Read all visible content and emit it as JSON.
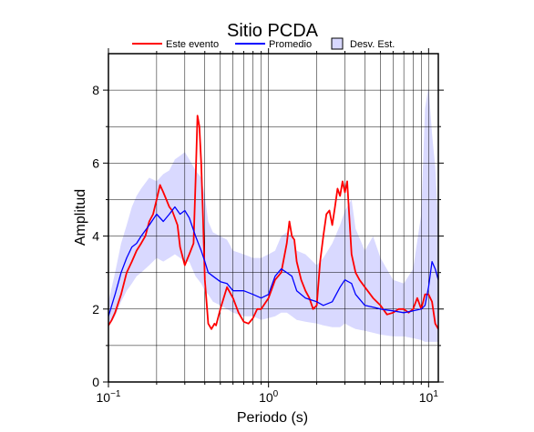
{
  "chart_data": {
    "type": "area",
    "title": "Sitio PCDA",
    "xlabel": "Periodo (s)",
    "ylabel": "Amplitud",
    "xscale": "log",
    "xlim": [
      0.1,
      11.5
    ],
    "ylim": [
      0,
      9
    ],
    "x_tick_labels": [
      {
        "value": 0.1,
        "base": "10",
        "exp": "−1"
      },
      {
        "value": 1,
        "base": "10",
        "exp": "0"
      },
      {
        "value": 10,
        "base": "10",
        "exp": "1"
      }
    ],
    "y_tick_labels": [
      "0",
      "2",
      "4",
      "6",
      "8"
    ],
    "y_ticks": [
      0,
      2,
      4,
      6,
      8
    ],
    "grid": true,
    "legend_position": "top",
    "legend": [
      {
        "label": "Este evento",
        "kind": "line",
        "color": "#ff0000"
      },
      {
        "label": "Promedio",
        "kind": "line",
        "color": "#0000ff"
      },
      {
        "label": "Desv. Est.",
        "kind": "patch",
        "color": "#d9d9ff"
      }
    ],
    "series": [
      {
        "name": "Este evento",
        "color": "#ff0000",
        "x": [
          0.1,
          0.105,
          0.11,
          0.12,
          0.13,
          0.14,
          0.15,
          0.16,
          0.17,
          0.18,
          0.19,
          0.2,
          0.21,
          0.22,
          0.23,
          0.24,
          0.25,
          0.27,
          0.28,
          0.3,
          0.32,
          0.34,
          0.35,
          0.36,
          0.37,
          0.38,
          0.39,
          0.4,
          0.42,
          0.44,
          0.46,
          0.47,
          0.5,
          0.55,
          0.6,
          0.65,
          0.7,
          0.75,
          0.8,
          0.85,
          0.9,
          1.0,
          1.1,
          1.2,
          1.3,
          1.35,
          1.4,
          1.45,
          1.5,
          1.6,
          1.7,
          1.8,
          1.9,
          2.0,
          2.1,
          2.2,
          2.3,
          2.4,
          2.5,
          2.6,
          2.7,
          2.8,
          2.9,
          3.0,
          3.1,
          3.2,
          3.3,
          3.5,
          3.7,
          4.0,
          4.5,
          5.0,
          5.5,
          6.0,
          6.5,
          7.0,
          7.5,
          8.0,
          8.5,
          9.0,
          9.5,
          10.0,
          10.5,
          11.0,
          11.5
        ],
        "y": [
          1.55,
          1.7,
          1.9,
          2.4,
          3.0,
          3.3,
          3.6,
          3.8,
          4.0,
          4.4,
          4.6,
          5.0,
          5.4,
          5.2,
          5.0,
          4.8,
          4.7,
          4.3,
          3.7,
          3.2,
          3.5,
          3.8,
          5.5,
          7.3,
          7.0,
          6.0,
          4.5,
          2.8,
          1.6,
          1.45,
          1.6,
          1.55,
          2.0,
          2.6,
          2.3,
          1.9,
          1.65,
          1.6,
          1.75,
          2.0,
          2.0,
          2.3,
          2.8,
          3.0,
          3.8,
          4.4,
          4.0,
          3.9,
          3.3,
          2.8,
          2.5,
          2.3,
          2.0,
          2.1,
          3.3,
          4.0,
          4.6,
          4.7,
          4.3,
          4.8,
          5.3,
          5.1,
          5.5,
          5.2,
          5.5,
          4.5,
          3.5,
          3.0,
          2.8,
          2.6,
          2.3,
          2.1,
          1.85,
          1.9,
          2.0,
          2.0,
          1.9,
          2.0,
          2.3,
          2.0,
          2.4,
          2.4,
          2.2,
          1.6,
          1.45
        ]
      },
      {
        "name": "Promedio",
        "color": "#0000ff",
        "x": [
          0.1,
          0.11,
          0.12,
          0.13,
          0.14,
          0.15,
          0.16,
          0.18,
          0.2,
          0.22,
          0.24,
          0.26,
          0.28,
          0.3,
          0.32,
          0.35,
          0.38,
          0.4,
          0.42,
          0.45,
          0.5,
          0.55,
          0.6,
          0.7,
          0.8,
          0.9,
          1.0,
          1.1,
          1.2,
          1.3,
          1.4,
          1.5,
          1.7,
          2.0,
          2.2,
          2.5,
          2.8,
          3.0,
          3.3,
          3.5,
          4.0,
          4.5,
          5.0,
          6.0,
          7.0,
          8.0,
          9.0,
          9.5,
          10.0,
          10.5,
          11.0,
          11.5
        ],
        "y": [
          1.8,
          2.4,
          3.0,
          3.4,
          3.7,
          3.8,
          4.0,
          4.3,
          4.6,
          4.4,
          4.6,
          4.8,
          4.6,
          4.7,
          4.5,
          4.0,
          3.6,
          3.3,
          3.0,
          2.9,
          2.75,
          2.7,
          2.5,
          2.5,
          2.4,
          2.3,
          2.4,
          2.9,
          3.1,
          3.0,
          2.9,
          2.5,
          2.3,
          2.2,
          2.1,
          2.2,
          2.6,
          2.8,
          2.7,
          2.4,
          2.1,
          2.05,
          2.0,
          1.95,
          1.9,
          1.95,
          2.0,
          2.1,
          2.6,
          3.3,
          3.1,
          2.8
        ]
      }
    ],
    "bands": [
      {
        "name": "Desv. Est.",
        "color": "#d9d9ff",
        "x": [
          0.1,
          0.11,
          0.12,
          0.13,
          0.14,
          0.15,
          0.16,
          0.18,
          0.2,
          0.22,
          0.24,
          0.26,
          0.28,
          0.3,
          0.32,
          0.35,
          0.38,
          0.4,
          0.42,
          0.45,
          0.5,
          0.55,
          0.6,
          0.7,
          0.8,
          0.9,
          1.0,
          1.1,
          1.2,
          1.3,
          1.4,
          1.5,
          1.7,
          2.0,
          2.2,
          2.5,
          2.8,
          3.0,
          3.3,
          3.5,
          4.0,
          4.5,
          5.0,
          6.0,
          7.0,
          8.0,
          9.0,
          9.5,
          10.0,
          10.5,
          11.0,
          11.5
        ],
        "upper": [
          2.2,
          3.0,
          3.8,
          4.3,
          4.8,
          5.1,
          5.3,
          5.6,
          5.5,
          5.7,
          5.8,
          6.1,
          6.2,
          6.3,
          6.1,
          5.8,
          5.6,
          5.1,
          4.4,
          4.1,
          4.0,
          3.9,
          3.6,
          3.5,
          3.4,
          3.4,
          3.5,
          3.6,
          4.0,
          4.1,
          4.0,
          3.6,
          3.5,
          3.2,
          3.4,
          3.8,
          4.3,
          4.7,
          5.0,
          4.2,
          3.6,
          4.0,
          3.4,
          2.8,
          2.7,
          3.1,
          4.6,
          7.5,
          8.1,
          6.8,
          5.9,
          4.4
        ],
        "lower": [
          1.5,
          1.8,
          2.2,
          2.5,
          2.7,
          2.9,
          3.0,
          3.2,
          3.4,
          3.3,
          3.4,
          3.5,
          3.4,
          3.3,
          3.3,
          2.9,
          2.7,
          2.5,
          2.4,
          2.2,
          2.1,
          2.0,
          1.9,
          1.8,
          1.8,
          1.7,
          1.75,
          1.8,
          1.9,
          1.9,
          1.8,
          1.7,
          1.65,
          1.6,
          1.55,
          1.5,
          1.5,
          1.6,
          1.5,
          1.45,
          1.4,
          1.35,
          1.3,
          1.25,
          1.25,
          1.2,
          1.15,
          1.1,
          1.1,
          1.1,
          1.1,
          1.1
        ]
      }
    ]
  }
}
